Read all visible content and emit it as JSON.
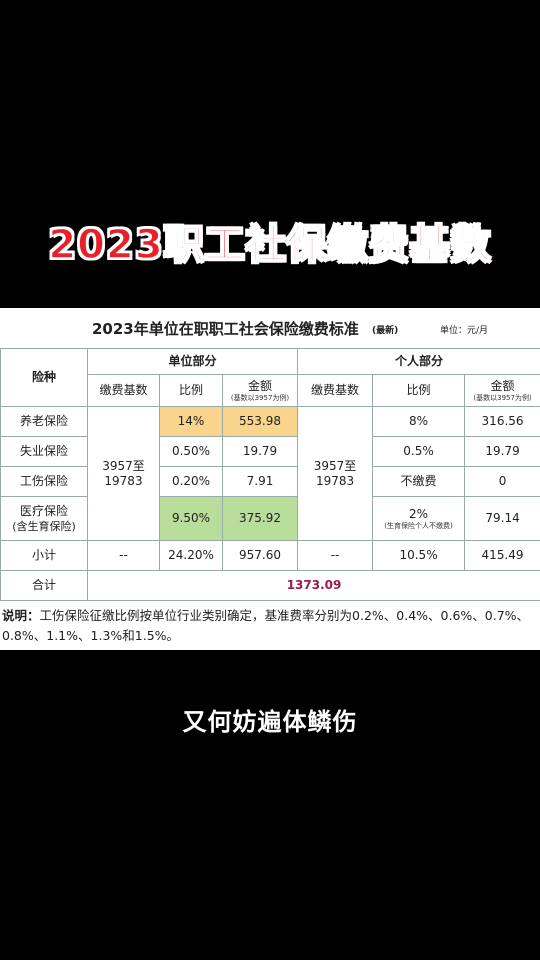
{
  "headline": "2023职工社保缴费基数",
  "doc": {
    "title": "2023年单位在职职工社会保险缴费标准",
    "title_tag": "(最新)",
    "unit": "单位：元/月",
    "headers": {
      "insurance_type": "险种",
      "unit_part": "单位部分",
      "personal_part": "个人部分",
      "base": "缴费基数",
      "ratio": "比例",
      "amount": "金额",
      "amount_note": "(基数以3957为例)"
    },
    "rows": [
      {
        "name": "养老保险",
        "unit_ratio": "14%",
        "unit_amount": "553.98",
        "p_ratio": "8%",
        "p_amount": "316.56"
      },
      {
        "name": "失业保险",
        "unit_ratio": "0.50%",
        "unit_amount": "19.79",
        "p_ratio": "0.5%",
        "p_amount": "19.79"
      },
      {
        "name": "工伤保险",
        "unit_ratio": "0.20%",
        "unit_amount": "7.91",
        "p_ratio": "不缴费",
        "p_amount": "0"
      },
      {
        "name": "医疗保险",
        "name_sub": "(含生育保险)",
        "unit_ratio": "9.50%",
        "unit_amount": "375.92",
        "p_ratio": "2%",
        "p_ratio_note": "(生育保险个人不缴费)",
        "p_amount": "79.14"
      }
    ],
    "unit_base": "3957至19783",
    "personal_base": "3957至19783",
    "subtotal": {
      "label": "小计",
      "unit_base": "--",
      "unit_ratio": "24.20%",
      "unit_amount": "957.60",
      "p_base": "--",
      "p_ratio": "10.5%",
      "p_amount": "415.49"
    },
    "total": {
      "label": "合计",
      "value": "1373.09"
    },
    "note_label": "说明：",
    "note_text": "工伤保险征缴比例按单位行业类别确定，基准费率分别为0.2%、0.4%、0.6%、0.7%、0.8%、1.1%、1.3%和1.5%。"
  },
  "caption": "又何妨遍体鳞伤",
  "colors": {
    "headline": "#e8202a",
    "highlight_orange": "#f8d48c",
    "highlight_green": "#b9dd9b",
    "total": "#9b1b4b"
  }
}
